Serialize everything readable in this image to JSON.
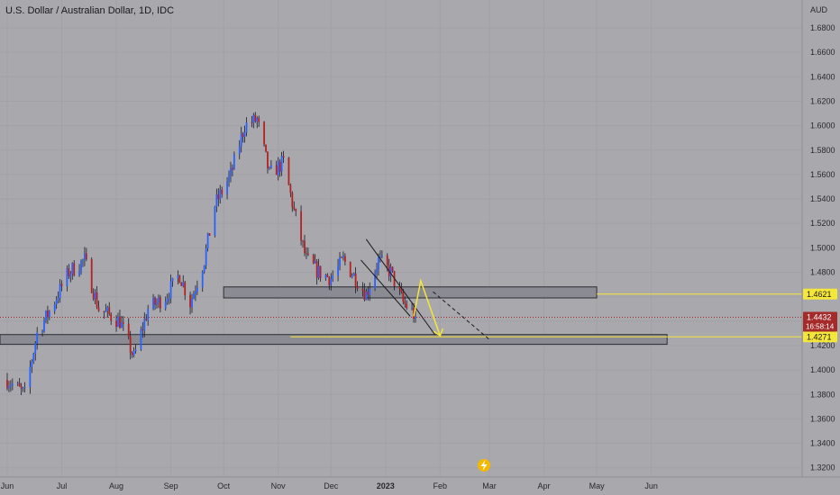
{
  "header": {
    "title": "U.S. Dollar / Australian Dollar, 1D, IDC"
  },
  "axis": {
    "unit": "AUD"
  },
  "chart_data": {
    "type": "candlestick",
    "title": "U.S. Dollar / Australian Dollar, 1D, IDC",
    "ylim": [
      1.31,
      1.69
    ],
    "y_ticks": [
      "1.6800",
      "1.6600",
      "1.6400",
      "1.6200",
      "1.6000",
      "1.5800",
      "1.5600",
      "1.5400",
      "1.5200",
      "1.5000",
      "1.4800",
      "1.4600",
      "1.4400",
      "1.4200",
      "1.4000",
      "1.3800",
      "1.3600",
      "1.3400",
      "1.3200"
    ],
    "x_ticks": [
      "Jun",
      "Jul",
      "Aug",
      "Sep",
      "Oct",
      "Nov",
      "Dec",
      "2023",
      "Feb",
      "Mar",
      "Apr",
      "May",
      "Jun"
    ],
    "close_path": [
      {
        "x": "2022-05-31",
        "y": 1.392
      },
      {
        "x": "2022-06-10",
        "y": 1.38
      },
      {
        "x": "2022-06-17",
        "y": 1.43
      },
      {
        "x": "2022-06-24",
        "y": 1.448
      },
      {
        "x": "2022-07-05",
        "y": 1.48
      },
      {
        "x": "2022-07-14",
        "y": 1.49
      },
      {
        "x": "2022-07-22",
        "y": 1.45
      },
      {
        "x": "2022-08-03",
        "y": 1.44
      },
      {
        "x": "2022-08-11",
        "y": 1.41
      },
      {
        "x": "2022-08-19",
        "y": 1.45
      },
      {
        "x": "2022-08-29",
        "y": 1.46
      },
      {
        "x": "2022-09-06",
        "y": 1.478
      },
      {
        "x": "2022-09-12",
        "y": 1.455
      },
      {
        "x": "2022-09-20",
        "y": 1.49
      },
      {
        "x": "2022-09-26",
        "y": 1.535
      },
      {
        "x": "2022-10-05",
        "y": 1.56
      },
      {
        "x": "2022-10-13",
        "y": 1.6
      },
      {
        "x": "2022-10-20",
        "y": 1.605
      },
      {
        "x": "2022-10-27",
        "y": 1.56
      },
      {
        "x": "2022-11-04",
        "y": 1.57
      },
      {
        "x": "2022-11-10",
        "y": 1.53
      },
      {
        "x": "2022-11-17",
        "y": 1.49
      },
      {
        "x": "2022-11-24",
        "y": 1.48
      },
      {
        "x": "2022-12-01",
        "y": 1.475
      },
      {
        "x": "2022-12-08",
        "y": 1.49
      },
      {
        "x": "2022-12-15",
        "y": 1.475
      },
      {
        "x": "2022-12-21",
        "y": 1.462
      },
      {
        "x": "2022-12-28",
        "y": 1.49
      },
      {
        "x": "2023-01-04",
        "y": 1.48
      },
      {
        "x": "2023-01-11",
        "y": 1.455
      },
      {
        "x": "2023-01-16",
        "y": 1.448
      },
      {
        "x": "2023-01-18",
        "y": 1.443
      }
    ],
    "zones": [
      {
        "from": "2022-10-01",
        "to": "2023-05-01",
        "low": 1.459,
        "high": 1.468
      },
      {
        "from": "2022-05-25",
        "to": "2023-06-10",
        "low": 1.421,
        "high": 1.429
      }
    ],
    "price_lines": [
      {
        "price": 1.4621,
        "color": "#f5e63a"
      },
      {
        "price": 1.4271,
        "color": "#f5e63a"
      }
    ],
    "current": {
      "price": "1.4432",
      "countdown": "16:58:14",
      "color": "#a52a2a"
    },
    "levels_labels": [
      "1.4621",
      "1.4271"
    ],
    "colors": {
      "up": "#2962ff",
      "down": "#b22222",
      "background": "#a8a8ad",
      "zone": "#8b8b94",
      "highlight": "#f5e63a"
    }
  }
}
